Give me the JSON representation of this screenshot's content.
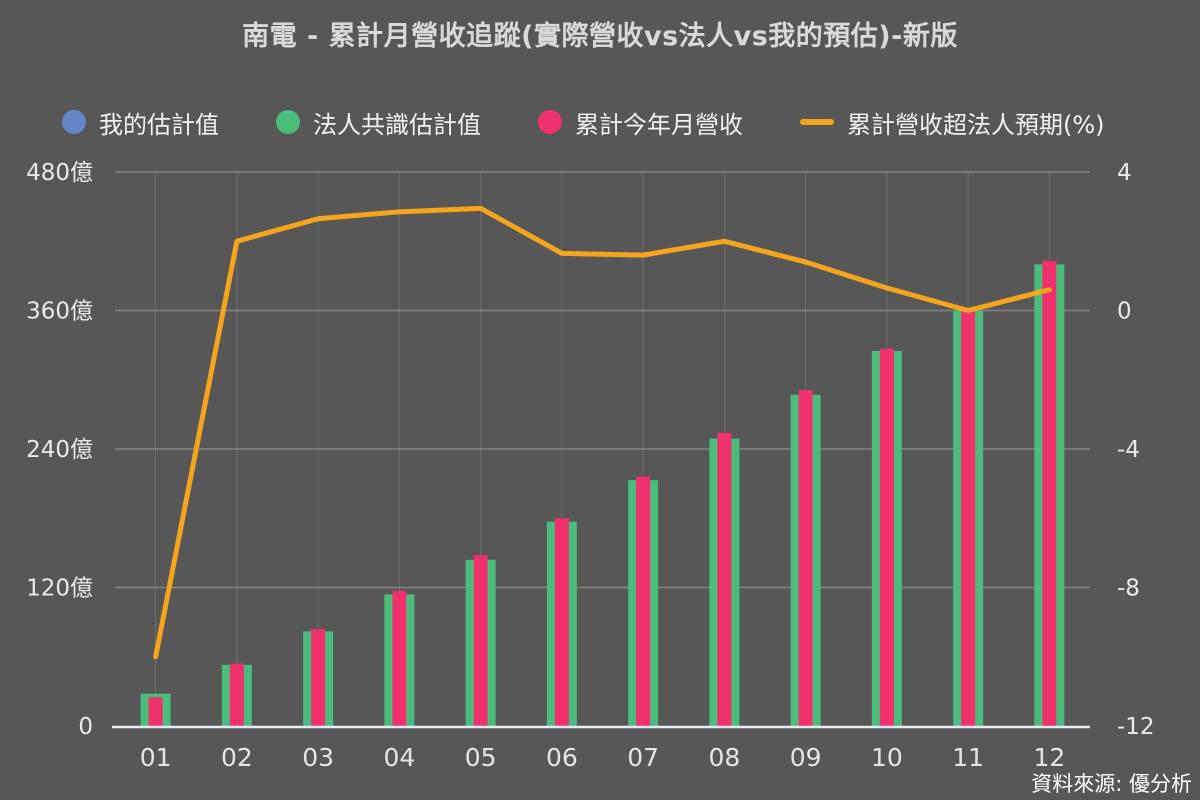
{
  "title": "南電 - 累計月營收追蹤(實際營收vs法人vs我的預估)-新版",
  "source": "資料來源: 優分析",
  "legend": [
    {
      "label": "我的估計值",
      "color": "#6487C8",
      "marker": "circle"
    },
    {
      "label": "法人共識估計值",
      "color": "#4CBC7D",
      "marker": "circle"
    },
    {
      "label": "累計今年月營收",
      "color": "#EF316D",
      "marker": "circle"
    },
    {
      "label": "累計營收超法人預期(%)",
      "color": "#F4A41D",
      "marker": "line"
    }
  ],
  "colors": {
    "background": "#575757",
    "title_text": "#d9d9d9",
    "legend_text": "#f2f2f2",
    "axis_label_text": "#e9e9e9",
    "horizontal_gridline": "#a2a2a2",
    "vertical_gridline": "#8a8a8a",
    "axis_line": "#e8ecf2",
    "bar_green": "#4CBC7D",
    "bar_pink": "#EF316D",
    "bar_blue": "#6487C8",
    "line_orange": "#F4A41D"
  },
  "chart_data": {
    "type": "bar+line",
    "title": "南電 - 累計月營收追蹤(實際營收vs法人vs我的預估)-新版",
    "categories": [
      "01",
      "02",
      "03",
      "04",
      "05",
      "06",
      "07",
      "08",
      "09",
      "10",
      "11",
      "12"
    ],
    "series": [
      {
        "name": "我的估計值",
        "type": "bar",
        "axis": "left",
        "color": "#6487C8",
        "values": [],
        "visible_in_plot": false
      },
      {
        "name": "法人共識估計值",
        "type": "bar",
        "axis": "left",
        "color": "#4CBC7D",
        "values": [
          28,
          53,
          82,
          114,
          144,
          177,
          213,
          249,
          287,
          325,
          360,
          400
        ]
      },
      {
        "name": "累計今年月營收",
        "type": "bar",
        "axis": "left",
        "color": "#EF316D",
        "values": [
          25,
          54,
          84,
          117,
          148,
          180,
          216,
          254,
          291,
          327,
          361,
          403
        ]
      },
      {
        "name": "累計營收超法人預期(%)",
        "type": "line",
        "axis": "right",
        "color": "#F4A41D",
        "values": [
          -10.0,
          2.0,
          2.65,
          2.85,
          2.95,
          1.65,
          1.6,
          2.0,
          1.4,
          0.65,
          0.0,
          0.6
        ]
      }
    ],
    "left_axis": {
      "unit": "億",
      "tick_values": [
        0,
        120,
        240,
        360,
        480
      ],
      "tick_labels": [
        "0",
        "120億",
        "240億",
        "360億",
        "480億"
      ],
      "range": [
        0,
        480
      ]
    },
    "right_axis": {
      "tick_values": [
        -12,
        -8,
        -4,
        0,
        4
      ],
      "tick_labels": [
        "-12",
        "-8",
        "-4",
        "0",
        "4"
      ],
      "range": [
        -12,
        4
      ]
    },
    "xlabel": "",
    "ylabel": "",
    "grid": true,
    "legend_position": "top"
  }
}
